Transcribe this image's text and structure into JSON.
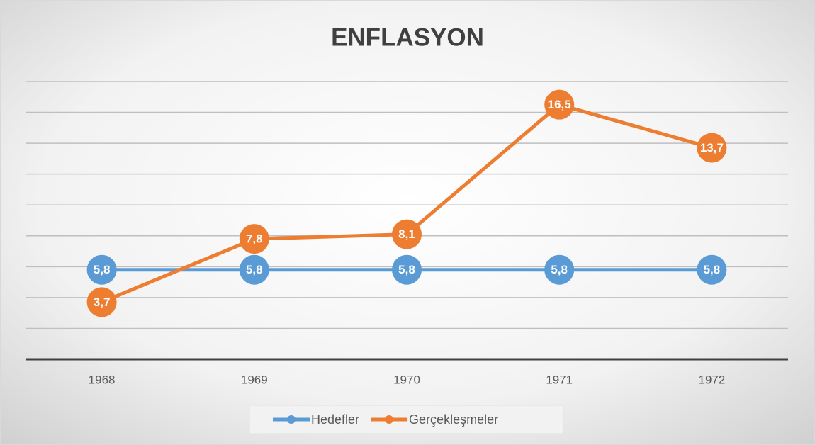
{
  "chart_data": {
    "type": "line",
    "title": "ENFLASYON",
    "categories": [
      "1968",
      "1969",
      "1970",
      "1971",
      "1972"
    ],
    "series": [
      {
        "name": "Hedefler",
        "color": "#5b9bd5",
        "values": [
          5.8,
          5.8,
          5.8,
          5.8,
          5.8
        ],
        "value_labels": [
          "5,8",
          "5,8",
          "5,8",
          "5,8",
          "5,8"
        ]
      },
      {
        "name": "Gerçekleşmeler",
        "color": "#ed7d31",
        "values": [
          3.7,
          7.8,
          8.1,
          16.5,
          13.7
        ],
        "value_labels": [
          "3,7",
          "7,8",
          "8,1",
          "16,5",
          "13,7"
        ]
      }
    ],
    "ylim": [
      0,
      18
    ],
    "yticks": [
      0,
      2,
      4,
      6,
      8,
      10,
      12,
      14,
      16,
      18
    ],
    "grid": true,
    "legend": "bottom"
  }
}
